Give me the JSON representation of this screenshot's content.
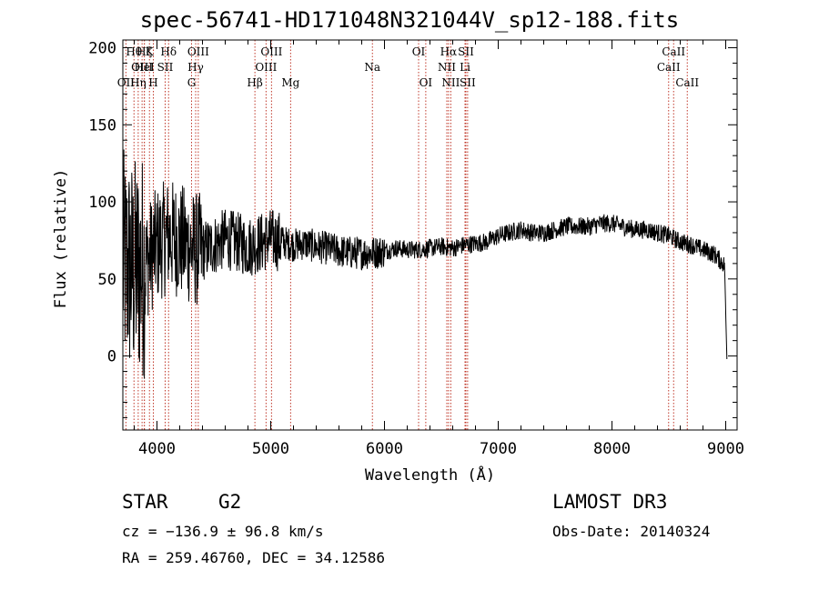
{
  "chart_data": {
    "type": "line",
    "title": "spec-56741-HD171048N321044V_sp12-188.fits",
    "xlabel": "Wavelength (Å)",
    "ylabel": "Flux (relative)",
    "xlim": [
      3700,
      9100
    ],
    "ylim": [
      -48,
      205
    ],
    "xticks": [
      4000,
      5000,
      6000,
      7000,
      8000,
      9000
    ],
    "yticks": [
      0,
      50,
      100,
      150,
      200
    ],
    "series": [
      {
        "name": "flux",
        "x": [
          3700,
          3800,
          3900,
          4000,
          4100,
          4200,
          4300,
          4400,
          4500,
          4600,
          4700,
          4800,
          4900,
          5000,
          5100,
          5200,
          5300,
          5400,
          5500,
          5600,
          5700,
          5800,
          5900,
          6000,
          6100,
          6200,
          6300,
          6400,
          6500,
          6600,
          6700,
          6800,
          6900,
          7000,
          7100,
          7200,
          7300,
          7400,
          7500,
          7600,
          7700,
          7800,
          7900,
          8000,
          8100,
          8200,
          8300,
          8400,
          8500,
          8600,
          8700,
          8800,
          8900,
          9000
        ],
        "y": [
          60,
          55,
          60,
          72,
          78,
          75,
          70,
          68,
          72,
          76,
          74,
          71,
          73,
          76,
          74,
          72,
          73,
          71,
          70,
          68,
          67,
          67,
          67,
          68,
          70,
          69,
          69,
          70,
          71,
          70,
          72,
          73,
          74,
          78,
          80,
          82,
          80,
          80,
          82,
          84,
          84,
          84,
          86,
          86,
          84,
          82,
          82,
          80,
          78,
          74,
          72,
          69,
          66,
          58
        ]
      }
    ],
    "spectral_lines": [
      {
        "name": "OII",
        "wavelength": 3727,
        "row": 3
      },
      {
        "name": "Hθ",
        "wavelength": 3798,
        "row": 1
      },
      {
        "name": "Hη",
        "wavelength": 3835,
        "row": 3
      },
      {
        "name": "OIII",
        "wavelength": 3869,
        "row": 2
      },
      {
        "name": "Hζ",
        "wavelength": 3889,
        "row": 1
      },
      {
        "name": "HeI",
        "wavelength": 3889,
        "row": 2
      },
      {
        "name": "K",
        "wavelength": 3934,
        "row": 1
      },
      {
        "name": "H",
        "wavelength": 3968,
        "row": 3
      },
      {
        "name": "SII",
        "wavelength": 4072,
        "row": 2
      },
      {
        "name": "Hδ",
        "wavelength": 4102,
        "row": 1
      },
      {
        "name": "G",
        "wavelength": 4304,
        "row": 3
      },
      {
        "name": "Hγ",
        "wavelength": 4340,
        "row": 2
      },
      {
        "name": "OIII",
        "wavelength": 4363,
        "row": 1
      },
      {
        "name": "Hβ",
        "wavelength": 4861,
        "row": 3
      },
      {
        "name": "OIII",
        "wavelength": 4959,
        "row": 2
      },
      {
        "name": "OIII",
        "wavelength": 5007,
        "row": 1
      },
      {
        "name": "Mg",
        "wavelength": 5175,
        "row": 3
      },
      {
        "name": "Na",
        "wavelength": 5894,
        "row": 2
      },
      {
        "name": "OI",
        "wavelength": 6300,
        "row": 1
      },
      {
        "name": "OI",
        "wavelength": 6363,
        "row": 3
      },
      {
        "name": "NII",
        "wavelength": 6548,
        "row": 2
      },
      {
        "name": "Hα",
        "wavelength": 6563,
        "row": 1
      },
      {
        "name": "NII",
        "wavelength": 6583,
        "row": 3
      },
      {
        "name": "Li",
        "wavelength": 6708,
        "row": 2
      },
      {
        "name": "SII",
        "wavelength": 6716,
        "row": 1
      },
      {
        "name": "SII",
        "wavelength": 6731,
        "row": 3
      },
      {
        "name": "CaII",
        "wavelength": 8498,
        "row": 2
      },
      {
        "name": "CaII",
        "wavelength": 8542,
        "row": 1
      },
      {
        "name": "CaII",
        "wavelength": 8662,
        "row": 3
      }
    ]
  },
  "info": {
    "class": "STAR",
    "subclass": "G2",
    "survey": "LAMOST DR3",
    "cz": "cz = −136.9 ± 96.8 km/s",
    "obs_date": "Obs-Date: 20140324",
    "radec": "RA = 259.46760, DEC =  34.12586"
  }
}
